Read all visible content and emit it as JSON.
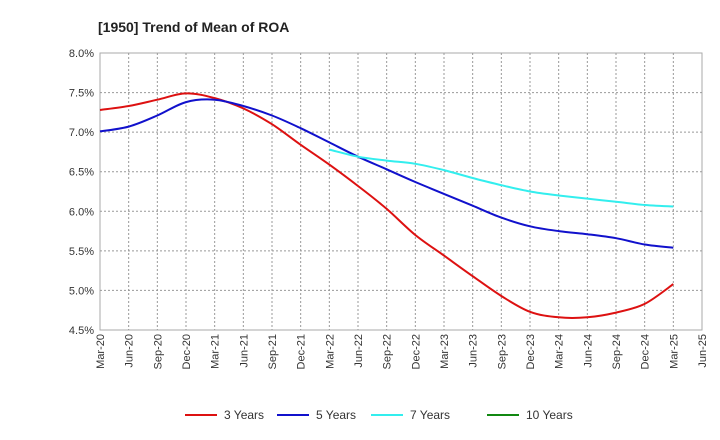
{
  "chart_data": {
    "type": "line",
    "title": "[1950]  Trend of Mean of ROA",
    "xlabel": "",
    "ylabel": "",
    "ylim": [
      4.5,
      8.0
    ],
    "yticks": [
      "8.0%",
      "7.5%",
      "7.0%",
      "6.5%",
      "6.0%",
      "5.5%",
      "5.0%",
      "4.5%"
    ],
    "ytick_values": [
      8.0,
      7.5,
      7.0,
      6.5,
      6.0,
      5.5,
      5.0,
      4.5
    ],
    "categories": [
      "Mar-20",
      "Jun-20",
      "Sep-20",
      "Dec-20",
      "Mar-21",
      "Jun-21",
      "Sep-21",
      "Dec-21",
      "Mar-22",
      "Jun-22",
      "Sep-22",
      "Dec-22",
      "Mar-23",
      "Jun-23",
      "Sep-23",
      "Dec-23",
      "Mar-24",
      "Jun-24",
      "Sep-24",
      "Dec-24",
      "Mar-25",
      "Jun-25"
    ],
    "grid": true,
    "legend_position": "bottom",
    "series": [
      {
        "name": "3 Years",
        "color": "#dd1111",
        "values": [
          7.28,
          7.33,
          7.41,
          7.49,
          7.43,
          7.3,
          7.1,
          6.84,
          6.59,
          6.32,
          6.03,
          5.7,
          5.44,
          5.18,
          4.93,
          4.73,
          4.66,
          4.66,
          4.72,
          4.83,
          5.08,
          null
        ]
      },
      {
        "name": "5 Years",
        "color": "#1111cc",
        "values": [
          7.01,
          7.07,
          7.21,
          7.38,
          7.41,
          7.33,
          7.21,
          7.05,
          6.87,
          6.69,
          6.53,
          6.37,
          6.22,
          6.07,
          5.92,
          5.81,
          5.75,
          5.71,
          5.66,
          5.58,
          5.54,
          null
        ]
      },
      {
        "name": "7 Years",
        "color": "#33eeee",
        "values": [
          null,
          null,
          null,
          null,
          null,
          null,
          null,
          null,
          6.78,
          6.69,
          6.64,
          6.6,
          6.52,
          6.42,
          6.33,
          6.25,
          6.2,
          6.16,
          6.12,
          6.08,
          6.06,
          null
        ]
      },
      {
        "name": "10 Years",
        "color": "#118811",
        "values": [
          null,
          null,
          null,
          null,
          null,
          null,
          null,
          null,
          null,
          null,
          null,
          null,
          null,
          null,
          null,
          null,
          null,
          null,
          null,
          null,
          null,
          null
        ]
      }
    ]
  }
}
